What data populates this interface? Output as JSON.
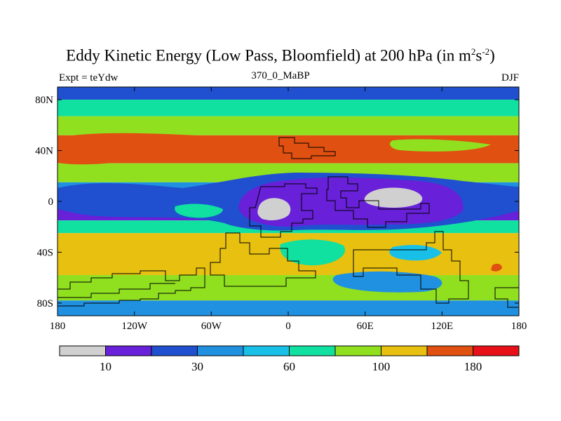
{
  "chart_data": {
    "type": "heatmap",
    "title_main": "Eddy Kinetic Energy (Low Pass, Bloomfield) at 200 hPa (in m",
    "title_sup1": "2",
    "title_mid": "s",
    "title_sup2": "-2",
    "title_end": ")",
    "subtitle_left": "Expt = teYdw",
    "subtitle_center": "370_0_MaBP",
    "subtitle_right": "DJF",
    "x_ticks": [
      "180",
      "120W",
      "60W",
      "0",
      "60E",
      "120E",
      "180"
    ],
    "x_tick_values": [
      -180,
      -120,
      -60,
      0,
      60,
      120,
      180
    ],
    "y_ticks": [
      "80N",
      "40N",
      "0",
      "40S",
      "80S"
    ],
    "y_tick_values": [
      80,
      40,
      0,
      -40,
      -80
    ],
    "xlim": [
      -180,
      180
    ],
    "ylim": [
      -90,
      90
    ],
    "colorbar": {
      "levels": [
        0,
        10,
        20,
        30,
        45,
        60,
        80,
        100,
        140,
        180,
        250
      ],
      "labels": [
        "10",
        "30",
        "60",
        "100",
        "180"
      ],
      "label_after_level_index": [
        1,
        3,
        5,
        7,
        9
      ],
      "colors": [
        "#d0d0d0",
        "#6820d8",
        "#2050d0",
        "#2090e0",
        "#18c0e8",
        "#10e0a0",
        "#90e020",
        "#e8c010",
        "#e05010",
        "#e81018"
      ]
    },
    "field_bands": [
      {
        "lat_range": [
          80,
          90
        ],
        "level_class": 2
      },
      {
        "lat_range": [
          67,
          80
        ],
        "level_class": 5
      },
      {
        "lat_range": [
          52,
          67
        ],
        "level_class": 6
      },
      {
        "lat_range": [
          30,
          52
        ],
        "level_class": 8
      },
      {
        "lat_range": [
          15,
          30
        ],
        "level_class": 6
      },
      {
        "lat_range": [
          5,
          15
        ],
        "level_class": 3
      },
      {
        "lat_range": [
          -15,
          5
        ],
        "level_class": 1
      },
      {
        "lat_range": [
          -25,
          -15
        ],
        "level_class": 5
      },
      {
        "lat_range": [
          -58,
          -25
        ],
        "level_class": 7
      },
      {
        "lat_range": [
          -78,
          -58
        ],
        "level_class": 6
      },
      {
        "lat_range": [
          -90,
          -78
        ],
        "level_class": 3
      }
    ]
  }
}
